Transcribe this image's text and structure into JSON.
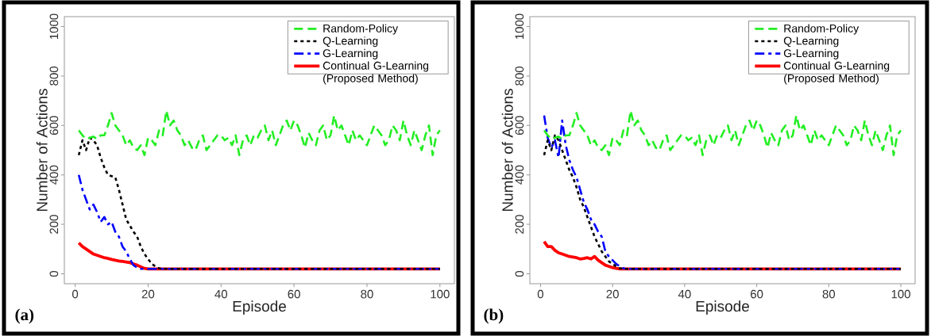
{
  "chart_data": [
    {
      "type": "line",
      "xlabel": "Episode",
      "ylabel": "Number of Actions",
      "annotations": [
        "(a)"
      ],
      "xlim": [
        -2.96,
        103.96
      ],
      "ylim": [
        -40,
        1040
      ],
      "xticks": [
        0,
        20,
        40,
        60,
        80,
        100
      ],
      "yticks": [
        0,
        200,
        400,
        600,
        800,
        1000
      ],
      "grid": false,
      "legend": "top right",
      "series": [
        {
          "name": "Random-Policy",
          "color": "#22ee22",
          "line_style": "dashed",
          "x": [
            1,
            2,
            3,
            4,
            5,
            6,
            7,
            8,
            9,
            10,
            11,
            12,
            13,
            14,
            15,
            16,
            17,
            18,
            19,
            20,
            21,
            22,
            23,
            24,
            25,
            26,
            27,
            28,
            29,
            30,
            31,
            32,
            33,
            34,
            35,
            36,
            37,
            38,
            39,
            40,
            41,
            42,
            43,
            44,
            45,
            46,
            47,
            48,
            49,
            50,
            51,
            52,
            53,
            54,
            55,
            56,
            57,
            58,
            59,
            60,
            61,
            62,
            63,
            64,
            65,
            66,
            67,
            68,
            69,
            70,
            71,
            72,
            73,
            74,
            75,
            76,
            77,
            78,
            79,
            80,
            81,
            82,
            83,
            84,
            85,
            86,
            87,
            88,
            89,
            90,
            91,
            92,
            93,
            94,
            95,
            96,
            97,
            98,
            99,
            100
          ],
          "values": [
            580,
            560,
            545,
            550,
            555,
            545,
            560,
            560,
            600,
            650,
            600,
            580,
            560,
            520,
            540,
            510,
            500,
            520,
            480,
            550,
            540,
            520,
            580,
            560,
            660,
            600,
            620,
            580,
            560,
            520,
            540,
            510,
            500,
            540,
            560,
            500,
            520,
            540,
            560,
            560,
            540,
            550,
            520,
            560,
            480,
            540,
            560,
            520,
            560,
            550,
            580,
            600,
            540,
            580,
            520,
            560,
            600,
            620,
            580,
            620,
            600,
            560,
            510,
            570,
            540,
            520,
            580,
            600,
            540,
            560,
            640,
            580,
            600,
            560,
            520,
            580,
            540,
            560,
            540,
            520,
            560,
            600,
            580,
            560,
            520,
            540,
            600,
            580,
            540,
            620,
            560,
            520,
            580,
            540,
            500,
            560,
            600,
            480,
            560,
            580
          ]
        },
        {
          "name": "Q-Learning",
          "color": "#000000",
          "line_style": "dotted",
          "x": [
            1,
            2,
            3,
            4,
            5,
            6,
            7,
            8,
            9,
            10,
            11,
            12,
            13,
            14,
            15,
            16,
            17,
            18,
            19,
            20,
            21,
            22,
            23,
            24,
            100
          ],
          "values": [
            480,
            540,
            500,
            550,
            540,
            520,
            470,
            430,
            400,
            395,
            390,
            340,
            280,
            220,
            195,
            170,
            150,
            110,
            80,
            60,
            40,
            30,
            22,
            20,
            20
          ]
        },
        {
          "name": "G-Learning",
          "color": "#0000ff",
          "line_style": "dashdot",
          "x": [
            1,
            2,
            3,
            4,
            5,
            6,
            7,
            8,
            9,
            10,
            11,
            12,
            13,
            14,
            15,
            16,
            17,
            18,
            100
          ],
          "values": [
            400,
            340,
            300,
            260,
            280,
            250,
            210,
            230,
            200,
            210,
            170,
            150,
            110,
            90,
            60,
            35,
            25,
            20,
            20
          ]
        },
        {
          "name": "Continual G-Learning (Proposed Method)",
          "color": "#ff0000",
          "line_style": "solid",
          "x": [
            1,
            2,
            3,
            4,
            5,
            6,
            7,
            8,
            9,
            10,
            11,
            12,
            13,
            14,
            15,
            16,
            17,
            18,
            19,
            20,
            100
          ],
          "values": [
            125,
            110,
            100,
            90,
            80,
            75,
            70,
            65,
            62,
            58,
            55,
            52,
            50,
            48,
            45,
            40,
            35,
            28,
            22,
            20,
            20
          ]
        }
      ]
    },
    {
      "type": "line",
      "xlabel": "Episode",
      "ylabel": "Number of Actions",
      "annotations": [
        "(b)"
      ],
      "xlim": [
        -2.96,
        103.96
      ],
      "ylim": [
        -40,
        1040
      ],
      "xticks": [
        0,
        20,
        40,
        60,
        80,
        100
      ],
      "yticks": [
        0,
        200,
        400,
        600,
        800,
        1000
      ],
      "grid": false,
      "legend": "top right",
      "series": [
        {
          "name": "Random-Policy",
          "color": "#22ee22",
          "line_style": "dashed",
          "x": [
            1,
            2,
            3,
            4,
            5,
            6,
            7,
            8,
            9,
            10,
            11,
            12,
            13,
            14,
            15,
            16,
            17,
            18,
            19,
            20,
            21,
            22,
            23,
            24,
            25,
            26,
            27,
            28,
            29,
            30,
            31,
            32,
            33,
            34,
            35,
            36,
            37,
            38,
            39,
            40,
            41,
            42,
            43,
            44,
            45,
            46,
            47,
            48,
            49,
            50,
            51,
            52,
            53,
            54,
            55,
            56,
            57,
            58,
            59,
            60,
            61,
            62,
            63,
            64,
            65,
            66,
            67,
            68,
            69,
            70,
            71,
            72,
            73,
            74,
            75,
            76,
            77,
            78,
            79,
            80,
            81,
            82,
            83,
            84,
            85,
            86,
            87,
            88,
            89,
            90,
            91,
            92,
            93,
            94,
            95,
            96,
            97,
            98,
            99,
            100
          ],
          "values": [
            580,
            560,
            545,
            550,
            555,
            545,
            560,
            560,
            600,
            650,
            600,
            580,
            560,
            520,
            540,
            510,
            500,
            520,
            480,
            550,
            540,
            520,
            580,
            560,
            660,
            600,
            620,
            580,
            560,
            520,
            540,
            510,
            500,
            540,
            560,
            500,
            520,
            540,
            560,
            560,
            540,
            550,
            520,
            560,
            480,
            540,
            560,
            520,
            560,
            550,
            580,
            600,
            540,
            580,
            520,
            560,
            600,
            620,
            580,
            620,
            600,
            560,
            510,
            570,
            540,
            520,
            580,
            600,
            540,
            560,
            640,
            580,
            600,
            560,
            520,
            580,
            540,
            560,
            540,
            520,
            560,
            600,
            580,
            560,
            520,
            540,
            600,
            580,
            540,
            620,
            560,
            520,
            580,
            540,
            500,
            560,
            600,
            480,
            560,
            580
          ]
        },
        {
          "name": "Q-Learning",
          "color": "#000000",
          "line_style": "dotted",
          "x": [
            1,
            2,
            3,
            4,
            5,
            6,
            7,
            8,
            9,
            10,
            11,
            12,
            13,
            14,
            15,
            16,
            17,
            18,
            19,
            20,
            21,
            22,
            23,
            24,
            100
          ],
          "values": [
            480,
            540,
            500,
            560,
            540,
            500,
            460,
            420,
            390,
            350,
            300,
            270,
            230,
            190,
            150,
            120,
            90,
            70,
            50,
            40,
            30,
            22,
            20,
            20,
            20
          ]
        },
        {
          "name": "G-Learning",
          "color": "#0000ff",
          "line_style": "dashdot",
          "x": [
            1,
            2,
            3,
            4,
            5,
            6,
            7,
            8,
            9,
            10,
            11,
            12,
            13,
            14,
            15,
            16,
            17,
            18,
            19,
            20,
            21,
            22,
            23,
            24,
            100
          ],
          "values": [
            640,
            550,
            510,
            540,
            470,
            620,
            520,
            460,
            420,
            390,
            340,
            290,
            260,
            220,
            200,
            170,
            150,
            90,
            70,
            55,
            40,
            30,
            22,
            20,
            20
          ]
        },
        {
          "name": "Continual G-Learning (Proposed Method)",
          "color": "#ff0000",
          "line_style": "solid",
          "x": [
            1,
            2,
            3,
            4,
            5,
            6,
            7,
            8,
            9,
            10,
            11,
            12,
            13,
            14,
            15,
            16,
            17,
            18,
            19,
            20,
            21,
            22,
            100
          ],
          "values": [
            130,
            110,
            110,
            95,
            85,
            80,
            75,
            70,
            68,
            65,
            60,
            62,
            65,
            60,
            70,
            55,
            45,
            35,
            30,
            25,
            22,
            20,
            20
          ]
        }
      ]
    }
  ]
}
